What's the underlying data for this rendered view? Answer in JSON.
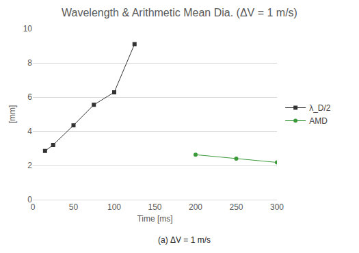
{
  "chart_data": {
    "type": "line",
    "title": "Wavelength & Arithmetic Mean Dia. (ΔV = 1 m/s)",
    "x_label": "Time [ms]",
    "y_label": "[mm]",
    "annotations": [
      "(a) ΔV = 1 m/s"
    ],
    "xlim": [
      0,
      300
    ],
    "xticks": [
      0,
      50,
      100,
      150,
      200,
      250,
      300
    ],
    "ylim": [
      0,
      10
    ],
    "yticks": [
      0,
      2,
      4,
      6,
      8,
      10
    ],
    "grid": true,
    "legend": "right",
    "series": [
      {
        "name": "λ_D/2",
        "color": "#333333",
        "marker": "square",
        "line_style": "solid",
        "x": [
          15,
          25,
          50,
          75,
          100,
          125
        ],
        "values": [
          2.85,
          3.2,
          4.35,
          5.55,
          6.28,
          9.1
        ]
      },
      {
        "name": "AMD",
        "color": "#3a9a3a",
        "marker": "circle",
        "line_style": "solid",
        "x": [
          200,
          250,
          300
        ],
        "values": [
          2.63,
          2.4,
          2.18
        ]
      }
    ]
  }
}
